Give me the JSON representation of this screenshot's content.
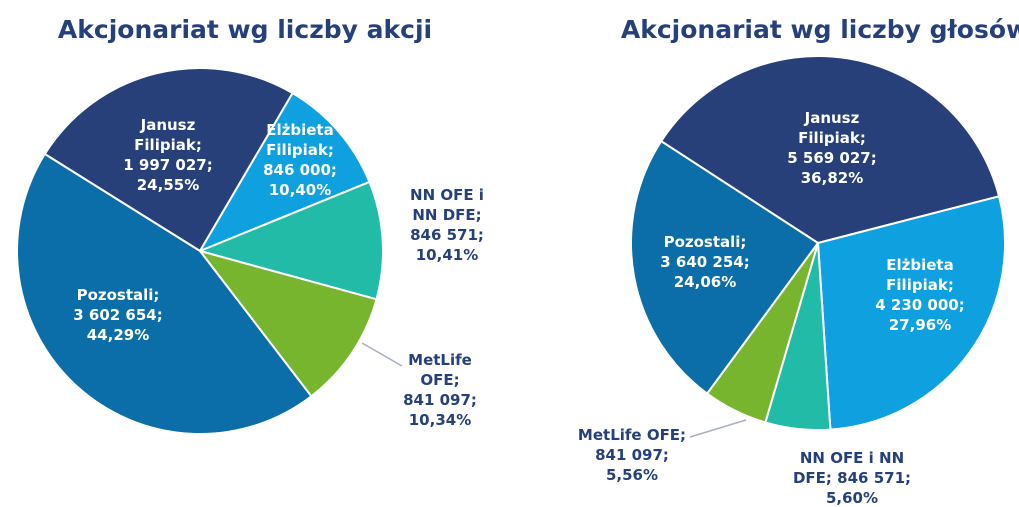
{
  "chart_data": [
    {
      "type": "pie",
      "title": "Akcjonariat wg liczby akcji",
      "categories": [
        "Janusz Filipiak;",
        "Elżbieta Filipiak;",
        "NN OFE i NN DFE;",
        "MetLife OFE;",
        "Pozostali;"
      ],
      "values": [
        1997027,
        846000,
        846571,
        841097,
        3602654
      ],
      "value_labels": [
        "1 997 027;",
        "846 000;",
        "846 571;",
        "841 097;",
        "3 602 654;"
      ],
      "percent": [
        24.55,
        10.4,
        10.41,
        10.34,
        44.29
      ],
      "percent_labels": [
        "24,55%",
        "10,40%",
        "10,41%",
        "10,34%",
        "44,29%"
      ],
      "colors": [
        "#27407a",
        "#0fa0e0",
        "#22bba8",
        "#78b52e",
        "#0b6ea8"
      ]
    },
    {
      "type": "pie",
      "title": "Akcjonariat wg liczby głosów",
      "categories": [
        "Janusz Filipiak;",
        "Elżbieta Filipiak;",
        "NN OFE i NN DFE;",
        "MetLife OFE;",
        "Pozostali;"
      ],
      "values": [
        5569027,
        4230000,
        846571,
        841097,
        3640254
      ],
      "value_labels": [
        "5 569 027;",
        "4 230 000;",
        "846 571;",
        "841 097;",
        "3 640 254;"
      ],
      "percent": [
        36.82,
        27.96,
        5.6,
        5.56,
        24.06
      ],
      "percent_labels": [
        "36,82%",
        "27,96%",
        "5,60%",
        "5,56%",
        "24,06%"
      ],
      "colors": [
        "#27407a",
        "#0fa0e0",
        "#22bba8",
        "#78b52e",
        "#0b6ea8"
      ]
    }
  ]
}
